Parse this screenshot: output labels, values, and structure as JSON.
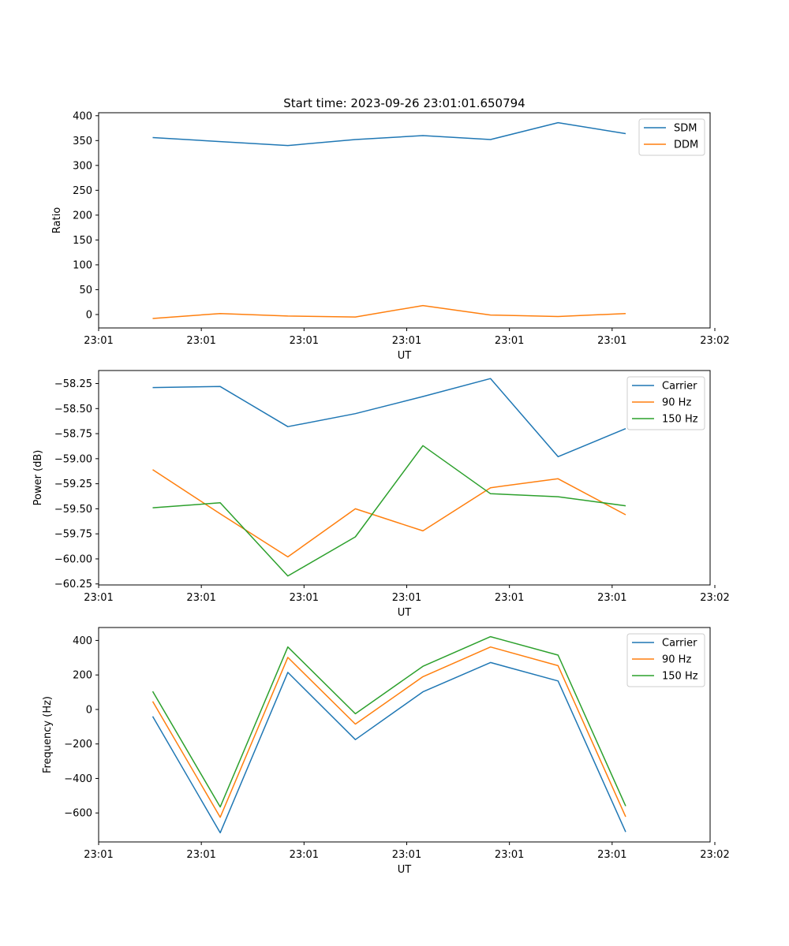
{
  "figure_title": "Start time: 2023-09-26 23:01:01.650794",
  "chart_data": [
    {
      "type": "line",
      "title": "Start time: 2023-09-26 23:01:01.650794",
      "xlabel": "UT",
      "ylabel": "Ratio",
      "x": [
        1,
        2,
        3,
        4,
        5,
        6,
        7,
        8
      ],
      "xlim": [
        0.2,
        9.25
      ],
      "xticks": [
        0.2,
        1.72,
        3.24,
        4.76,
        6.28,
        7.8,
        9.32
      ],
      "xtick_labels": [
        "23:01",
        "23:01",
        "23:01",
        "23:01",
        "23:01",
        "23:01",
        "23:02"
      ],
      "ylim": [
        -27,
        406
      ],
      "yticks": [
        0,
        50,
        100,
        150,
        200,
        250,
        300,
        350,
        400
      ],
      "ytick_labels": [
        "0",
        "50",
        "100",
        "150",
        "200",
        "250",
        "300",
        "350",
        "400"
      ],
      "legend_position": "top-right",
      "series": [
        {
          "name": "SDM",
          "color": "#1f77b4",
          "values": [
            356,
            348,
            340,
            352,
            360,
            352,
            386,
            364
          ]
        },
        {
          "name": "DDM",
          "color": "#ff7f0e",
          "values": [
            -8,
            2,
            -3,
            -5,
            18,
            -1,
            -4,
            2
          ]
        }
      ]
    },
    {
      "type": "line",
      "title": "",
      "xlabel": "UT",
      "ylabel": "Power (dB)",
      "x": [
        1,
        2,
        3,
        4,
        5,
        6,
        7,
        8
      ],
      "xlim": [
        0.2,
        9.25
      ],
      "xticks": [
        0.2,
        1.72,
        3.24,
        4.76,
        6.28,
        7.8,
        9.32
      ],
      "xtick_labels": [
        "23:01",
        "23:01",
        "23:01",
        "23:01",
        "23:01",
        "23:01",
        "23:02"
      ],
      "ylim": [
        -60.26,
        -58.12
      ],
      "yticks": [
        -60.25,
        -60.0,
        -59.75,
        -59.5,
        -59.25,
        -59.0,
        -58.75,
        -58.5,
        -58.25
      ],
      "ytick_labels": [
        "−60.25",
        "−60.00",
        "−59.75",
        "−59.50",
        "−59.25",
        "−59.00",
        "−58.75",
        "−58.50",
        "−58.25"
      ],
      "legend_position": "top-right",
      "series": [
        {
          "name": "Carrier",
          "color": "#1f77b4",
          "values": [
            -58.29,
            -58.28,
            -58.68,
            -58.55,
            -58.38,
            -58.2,
            -58.98,
            -58.7
          ]
        },
        {
          "name": "90 Hz",
          "color": "#ff7f0e",
          "values": [
            -59.11,
            -59.55,
            -59.98,
            -59.5,
            -59.72,
            -59.29,
            -59.2,
            -59.56
          ]
        },
        {
          "name": "150 Hz",
          "color": "#2ca02c",
          "values": [
            -59.49,
            -59.44,
            -60.17,
            -59.78,
            -58.87,
            -59.35,
            -59.38,
            -59.47
          ]
        }
      ]
    },
    {
      "type": "line",
      "title": "",
      "xlabel": "UT",
      "ylabel": "Frequency (Hz)",
      "x": [
        1,
        2,
        3,
        4,
        5,
        6,
        7,
        8
      ],
      "xlim": [
        0.2,
        9.25
      ],
      "xticks": [
        0.2,
        1.72,
        3.24,
        4.76,
        6.28,
        7.8,
        9.32
      ],
      "xtick_labels": [
        "23:01",
        "23:01",
        "23:01",
        "23:01",
        "23:01",
        "23:01",
        "23:02"
      ],
      "ylim": [
        -768,
        475
      ],
      "yticks": [
        -600,
        -400,
        -200,
        0,
        200,
        400
      ],
      "ytick_labels": [
        "−600",
        "−400",
        "−200",
        "0",
        "200",
        "400"
      ],
      "legend_position": "top-right",
      "series": [
        {
          "name": "Carrier",
          "color": "#1f77b4",
          "values": [
            -40,
            -715,
            215,
            -175,
            102,
            272,
            165,
            -710
          ]
        },
        {
          "name": "90 Hz",
          "color": "#ff7f0e",
          "values": [
            47,
            -625,
            302,
            -85,
            190,
            362,
            254,
            -622
          ]
        },
        {
          "name": "150 Hz",
          "color": "#2ca02c",
          "values": [
            105,
            -565,
            362,
            -25,
            250,
            422,
            315,
            -560
          ]
        }
      ]
    }
  ]
}
